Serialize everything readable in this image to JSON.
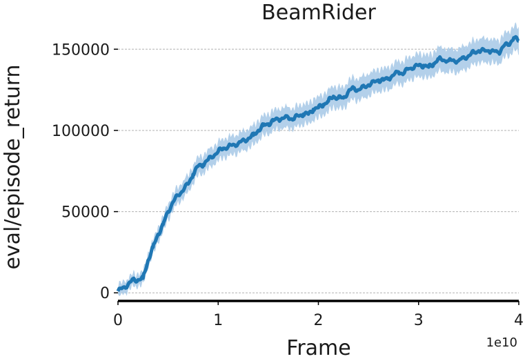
{
  "chart_data": {
    "type": "line",
    "title": "BeamRider",
    "xlabel": "Frame",
    "ylabel": "eval/episode_return",
    "x_offset_label": "1e10",
    "xlim": [
      0,
      4
    ],
    "ylim": [
      -5000,
      165000
    ],
    "xticks": [
      0,
      1,
      2,
      3,
      4
    ],
    "xtick_labels": [
      "0",
      "1",
      "2",
      "3",
      "4"
    ],
    "yticks": [
      0,
      50000,
      100000,
      150000
    ],
    "ytick_labels": [
      "0",
      "50000",
      "100000",
      "150000"
    ],
    "grid": "horizontal-dashed",
    "colors": {
      "line": "#1f77b4",
      "band": "#a6c8e6"
    },
    "series": [
      {
        "x": [
          0,
          0.1,
          0.15,
          0.2,
          0.25,
          0.3,
          0.35,
          0.4,
          0.45,
          0.5,
          0.55,
          0.6,
          0.7,
          0.75,
          0.8,
          0.85,
          0.9,
          1.0,
          1.05,
          1.1,
          1.2,
          1.3,
          1.35,
          1.4,
          1.45,
          1.5,
          1.55,
          1.6,
          1.7,
          1.75,
          1.8,
          1.85,
          1.9,
          1.95,
          2.0,
          2.05,
          2.1,
          2.15,
          2.2,
          2.25,
          2.3,
          2.35,
          2.4,
          2.5,
          2.6,
          2.65,
          2.7,
          2.8,
          2.85,
          2.9,
          3.0,
          3.05,
          3.1,
          3.15,
          3.2,
          3.3,
          3.4,
          3.5,
          3.55,
          3.6,
          3.7,
          3.8,
          3.85,
          3.9,
          3.95,
          4.0
        ],
        "y": [
          1000,
          5000,
          8000,
          8000,
          9000,
          20000,
          28000,
          36000,
          42000,
          50000,
          56000,
          60000,
          67000,
          73000,
          78000,
          79000,
          82000,
          87000,
          89000,
          90000,
          92000,
          95000,
          97000,
          100000,
          103000,
          104000,
          106000,
          107000,
          108000,
          107000,
          109000,
          110000,
          110000,
          113000,
          114000,
          116000,
          118000,
          121000,
          120000,
          120000,
          124000,
          126000,
          125000,
          128000,
          131000,
          131000,
          132000,
          136000,
          135000,
          138000,
          140000,
          140000,
          139000,
          141000,
          144000,
          143000,
          143000,
          146000,
          148000,
          149000,
          149000,
          148000,
          152000,
          153000,
          157000,
          155000
        ]
      }
    ]
  }
}
